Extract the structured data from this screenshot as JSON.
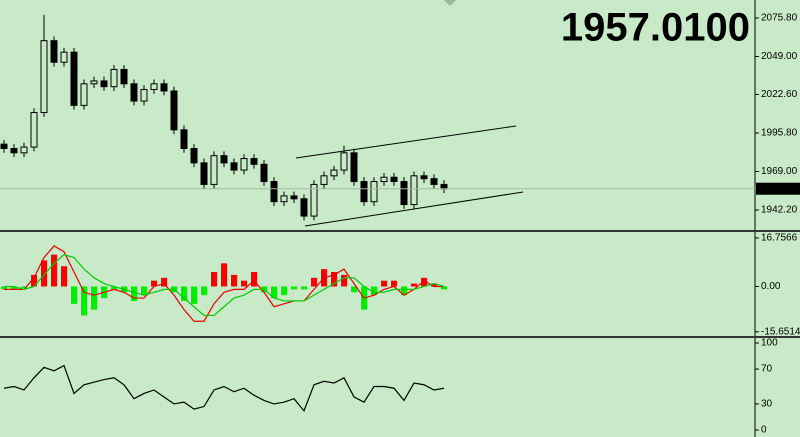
{
  "chart_data": [
    {
      "type": "candlestick",
      "price_display": "1957.0100",
      "last_price": 1957.01,
      "color": "#000000",
      "price_color": "#77ee22",
      "open": [
        1988,
        1985,
        1982,
        1986,
        2010,
        2060,
        2045,
        2052,
        2015,
        2030,
        2032,
        2028,
        2040,
        2030,
        2018,
        2026,
        2030,
        2025,
        1998,
        1985,
        1975,
        1960,
        1980,
        1975,
        1970,
        1978,
        1974,
        1962,
        1948,
        1952,
        1950,
        1938,
        1960,
        1966,
        1970,
        1982,
        1962,
        1948,
        1962,
        1965,
        1962,
        1946,
        1966,
        1964,
        1960
      ],
      "high": [
        1991,
        1988,
        1989,
        2013,
        2078,
        2063,
        2055,
        2055,
        2033,
        2035,
        2035,
        2043,
        2043,
        2033,
        2029,
        2033,
        2033,
        2028,
        2001,
        1988,
        1978,
        1983,
        1983,
        1978,
        1981,
        1981,
        1977,
        1965,
        1955,
        1955,
        1953,
        1963,
        1969,
        1973,
        1987,
        1985,
        1965,
        1965,
        1968,
        1968,
        1965,
        1969,
        1969,
        1967,
        1963
      ],
      "low": [
        1982,
        1979,
        1979,
        1983,
        2007,
        2042,
        2042,
        2012,
        2012,
        2027,
        2025,
        2025,
        2027,
        2015,
        2015,
        2023,
        2022,
        1995,
        1982,
        1972,
        1957,
        1957,
        1972,
        1967,
        1967,
        1971,
        1959,
        1945,
        1945,
        1947,
        1935,
        1935,
        1957,
        1963,
        1967,
        1959,
        1945,
        1945,
        1959,
        1959,
        1943,
        1943,
        1961,
        1957,
        1954
      ],
      "close": [
        1985,
        1982,
        1986,
        2010,
        2060,
        2045,
        2052,
        2015,
        2030,
        2032,
        2028,
        2040,
        2030,
        2018,
        2026,
        2030,
        2025,
        1998,
        1985,
        1975,
        1960,
        1980,
        1975,
        1970,
        1978,
        1974,
        1962,
        1948,
        1952,
        1950,
        1938,
        1960,
        1966,
        1970,
        1982,
        1962,
        1948,
        1962,
        1965,
        1962,
        1946,
        1966,
        1964,
        1960,
        1957.01
      ],
      "ylim": [
        1928.3,
        2088.3
      ],
      "yticks": [
        {
          "value": 2075.8,
          "label": "2075.80"
        },
        {
          "value": 2049,
          "label": "2049.00"
        },
        {
          "value": 2022.6,
          "label": "2022.60"
        },
        {
          "value": 1995.8,
          "label": "1995.80"
        },
        {
          "value": 1969,
          "label": "1969.00"
        },
        {
          "value": 1942.2,
          "label": "1942.20"
        }
      ]
    },
    {
      "type": "macd",
      "ylim": [
        -17.1,
        18.81
      ],
      "yticks": [
        16.7566,
        {
          "value": 0,
          "label": "0.00"
        },
        -15.6514
      ],
      "histogram": {
        "up_color": "#ff0000",
        "down_color": "#00ee00",
        "values": [
          -1,
          -1,
          -0.5,
          4,
          9,
          11,
          7,
          -6,
          -10,
          -8,
          -4,
          -1,
          -2,
          -5,
          -3,
          2,
          3,
          -2,
          -5,
          -6,
          -3,
          5,
          8,
          4,
          2,
          5,
          -2,
          -4,
          -3,
          -1,
          -1,
          3,
          6,
          5,
          4,
          -2,
          -8,
          -3,
          2,
          2,
          -3,
          1,
          3,
          1,
          -1
        ]
      },
      "series": [
        {
          "color": "#ee0000",
          "values": [
            -1,
            -1,
            -1,
            3,
            10,
            14,
            12,
            5,
            -2,
            -3,
            -2,
            -1,
            -2,
            -4,
            -4,
            0,
            1,
            -3,
            -8,
            -12,
            -12,
            -6,
            -2,
            -1,
            -1,
            2,
            -2,
            -7,
            -6,
            -5,
            -5,
            -1,
            3,
            4,
            6,
            1,
            -4,
            -3,
            -1,
            0,
            -3,
            -1,
            2,
            0,
            0
          ]
        },
        {
          "color": "#00cc00",
          "values": [
            0,
            0,
            -1,
            0,
            4,
            8,
            11,
            10,
            6,
            3,
            1,
            0,
            -1,
            -2,
            -3,
            -2,
            -1,
            -1,
            -4,
            -7,
            -10,
            -10,
            -7,
            -4,
            -3,
            -1,
            -1,
            -4,
            -5,
            -5,
            -5,
            -3,
            -1,
            1,
            3,
            3,
            0,
            -2,
            -2,
            -1,
            -1,
            -1,
            0,
            1,
            0
          ]
        }
      ]
    },
    {
      "type": "line",
      "ylim": [
        -8,
        105.7
      ],
      "yticks": [
        100,
        70,
        30,
        0
      ],
      "color": "#000000",
      "values": [
        48,
        50,
        46,
        60,
        72,
        68,
        74,
        42,
        52,
        55,
        58,
        60,
        52,
        36,
        42,
        46,
        38,
        30,
        32,
        24,
        27,
        46,
        50,
        44,
        48,
        40,
        34,
        30,
        32,
        36,
        22,
        52,
        56,
        54,
        60,
        38,
        32,
        50,
        50,
        48,
        34,
        54,
        52,
        46,
        48
      ]
    }
  ]
}
